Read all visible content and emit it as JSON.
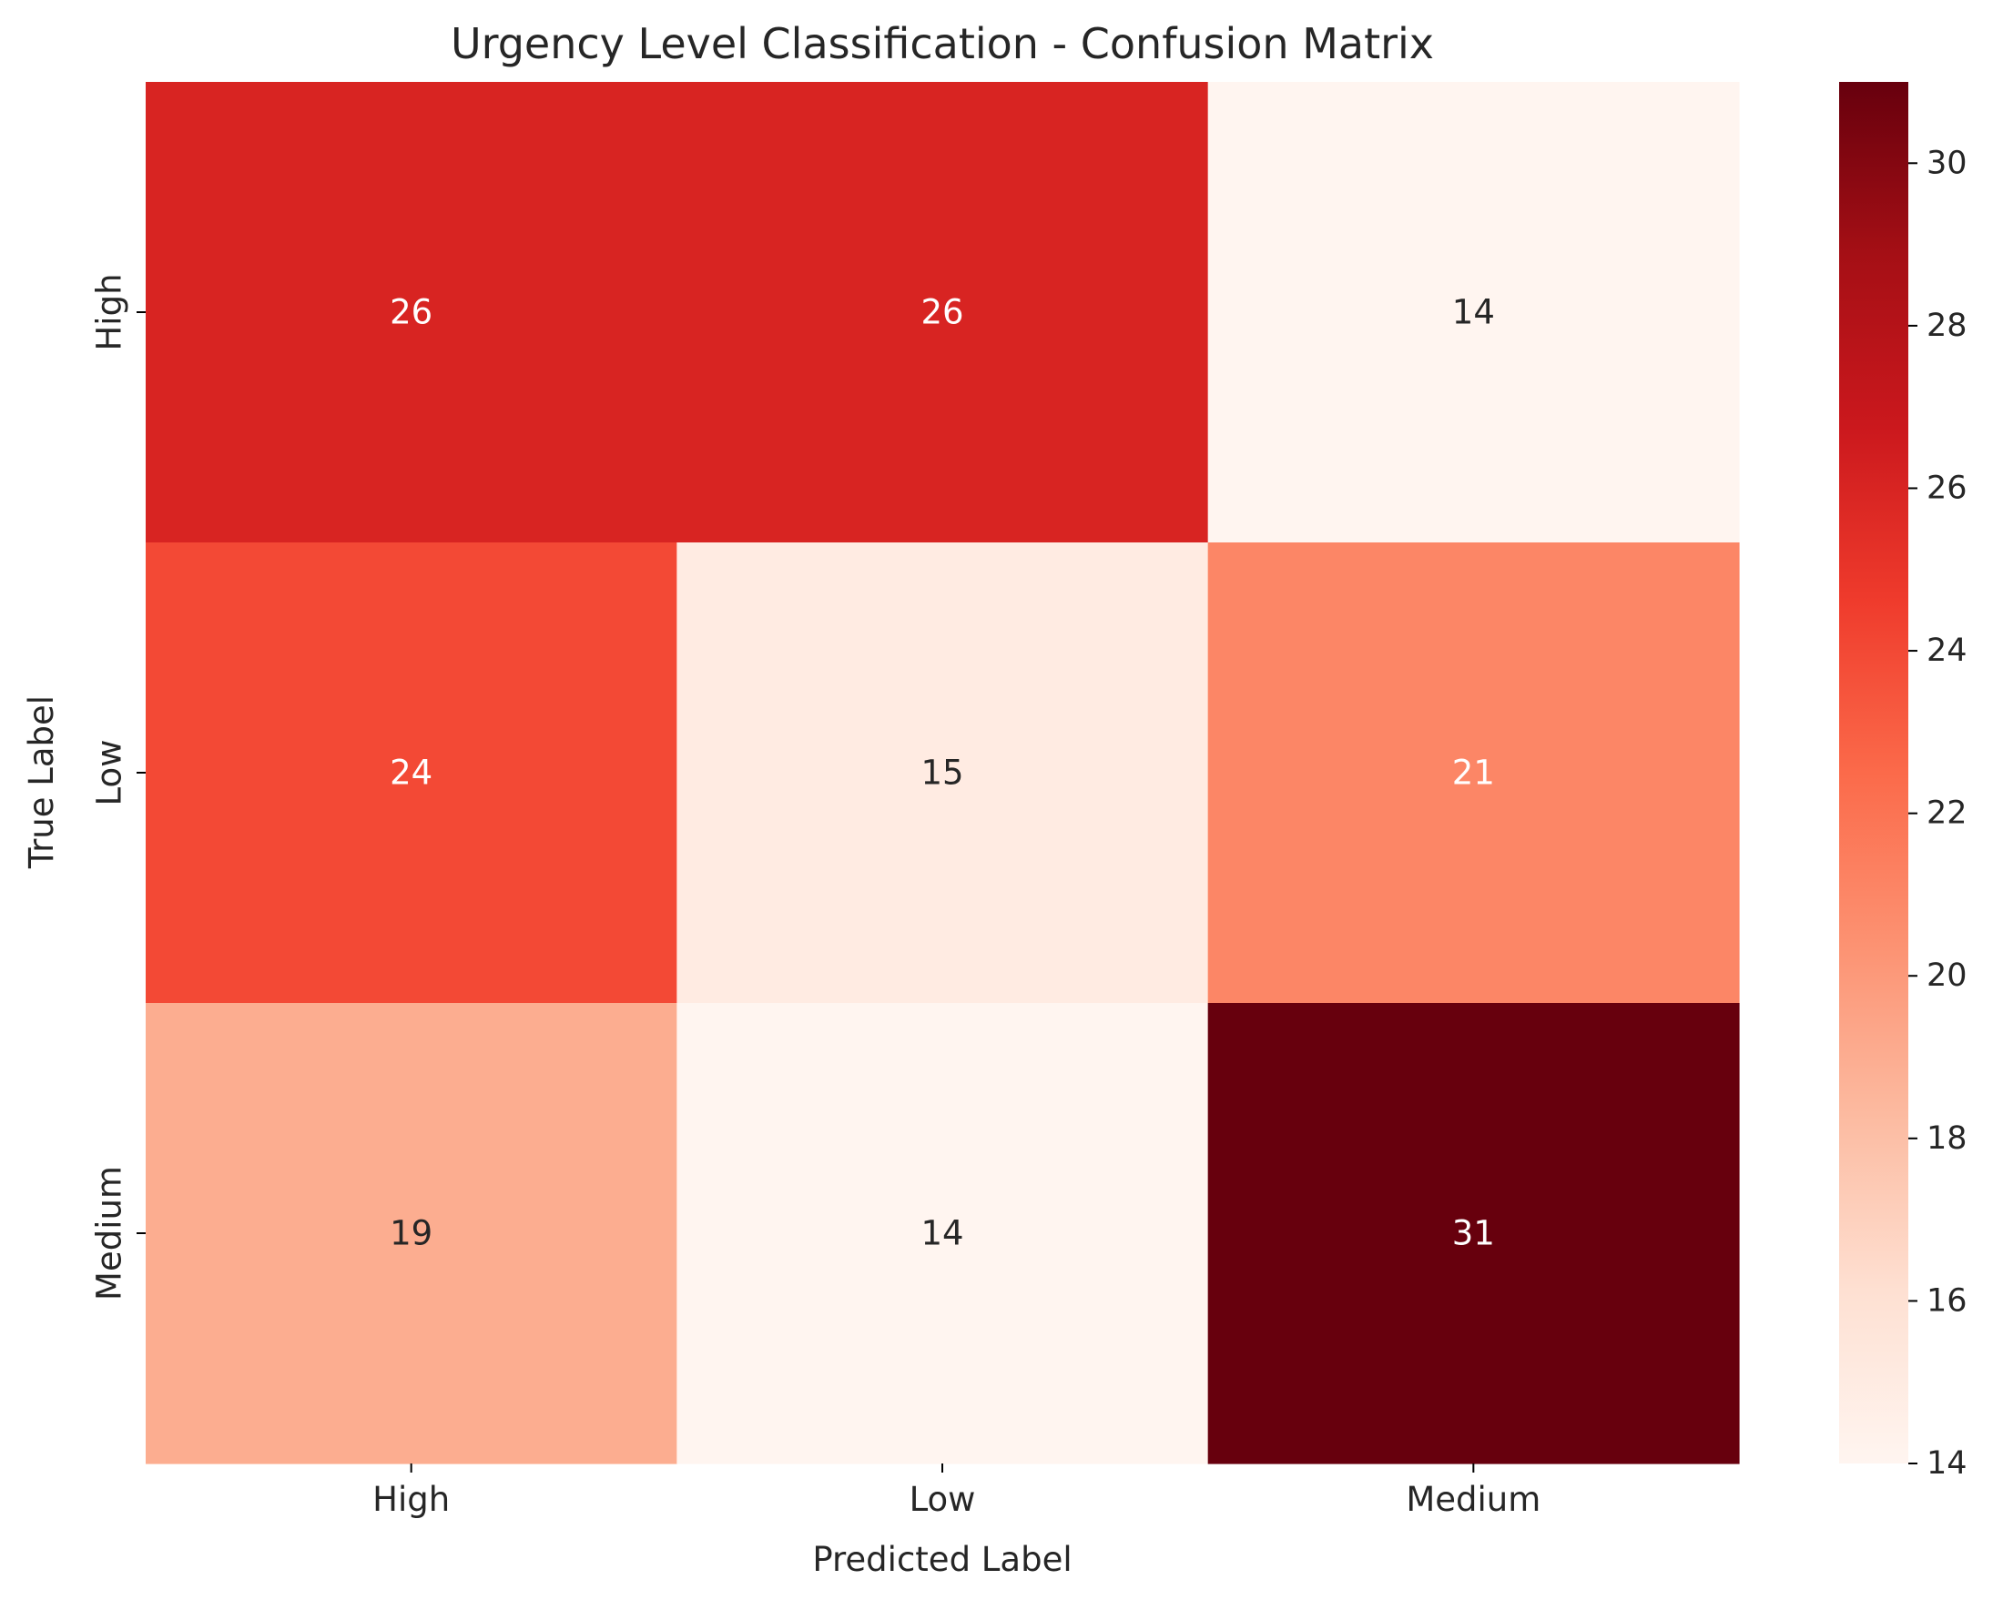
{
  "chart_data": {
    "type": "heatmap",
    "title": "Urgency Level Classification - Confusion Matrix",
    "xlabel": "Predicted Label",
    "ylabel": "True Label",
    "x_categories": [
      "High",
      "Low",
      "Medium"
    ],
    "y_categories": [
      "High",
      "Low",
      "Medium"
    ],
    "values": [
      [
        26,
        26,
        14
      ],
      [
        24,
        15,
        21
      ],
      [
        19,
        14,
        31
      ]
    ],
    "colormap": "Reds",
    "colorbar": {
      "min": 14,
      "max": 31,
      "ticks": [
        14,
        16,
        18,
        20,
        22,
        24,
        26,
        28,
        30
      ]
    },
    "colors": {
      "annotation_light": "#ffffff",
      "annotation_dark": "#262626",
      "axis": "#000000",
      "text": "#262626"
    }
  }
}
